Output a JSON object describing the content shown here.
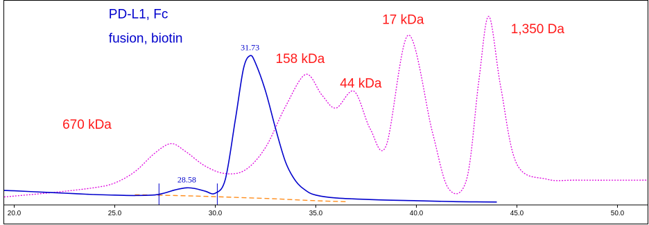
{
  "colors": {
    "background": "#ffffff",
    "frame": "#000000",
    "sample_trace": "#0000cc",
    "standard_trace": "#dd00dd",
    "baseline": "#ff8c1a",
    "standard_labels": "#ff1a1a",
    "sample_labels": "#0000cc"
  },
  "chart_data": {
    "type": "line",
    "title": "",
    "xlabel": "",
    "ylabel": "",
    "xlim": [
      19.5,
      51.5
    ],
    "ylim": [
      0,
      1.08
    ],
    "grid": false,
    "x_ticks": [
      20.0,
      25.0,
      30.0,
      35.0,
      40.0,
      45.0,
      50.0
    ],
    "x_tick_labels": [
      "20.0",
      "25.0",
      "30.0",
      "35.0",
      "40.0",
      "45.0",
      "50.0"
    ],
    "series": [
      {
        "key": "sample",
        "style": "solid",
        "color": "#0000cc",
        "x": [
          19.5,
          20,
          21,
          22,
          23,
          24,
          25,
          26,
          27,
          27.5,
          28,
          28.58,
          29,
          29.5,
          30,
          30.5,
          31,
          31.4,
          31.73,
          32,
          32.5,
          33,
          33.5,
          34,
          34.5,
          35,
          36,
          38,
          40,
          42,
          43,
          44
        ],
        "y": [
          0.07,
          0.068,
          0.063,
          0.058,
          0.053,
          0.048,
          0.045,
          0.043,
          0.046,
          0.057,
          0.073,
          0.084,
          0.08,
          0.066,
          0.055,
          0.13,
          0.45,
          0.72,
          0.79,
          0.75,
          0.6,
          0.4,
          0.22,
          0.12,
          0.07,
          0.045,
          0.03,
          0.02,
          0.015,
          0.01,
          0.009,
          0.008
        ]
      },
      {
        "key": "standards",
        "style": "dotted",
        "color": "#dd00dd",
        "x": [
          19.5,
          20,
          22,
          24,
          25,
          26,
          27,
          27.8,
          28.5,
          29.5,
          30.5,
          31.5,
          32.5,
          33.5,
          34.5,
          35.3,
          36,
          36.9,
          37.7,
          38.5,
          39.6,
          40.8,
          41.6,
          42.5,
          43.1,
          43.6,
          44.2,
          45,
          46.5,
          48,
          51.5
        ],
        "y": [
          0.035,
          0.04,
          0.06,
          0.085,
          0.11,
          0.17,
          0.27,
          0.32,
          0.28,
          0.2,
          0.16,
          0.18,
          0.3,
          0.52,
          0.69,
          0.58,
          0.51,
          0.6,
          0.4,
          0.31,
          0.9,
          0.38,
          0.08,
          0.13,
          0.65,
          1.0,
          0.62,
          0.21,
          0.13,
          0.125,
          0.125
        ]
      },
      {
        "key": "baseline",
        "style": "dashed",
        "color": "#ff8c1a",
        "x": [
          26,
          27,
          29,
          31,
          33,
          35,
          36.5
        ],
        "y": [
          0.047,
          0.045,
          0.04,
          0.033,
          0.025,
          0.015,
          0.01
        ]
      }
    ],
    "peak_markers": [
      27.2,
      30.1
    ],
    "peak_labels": [
      {
        "text": "28.58",
        "x": 28.58,
        "y": 0.084
      },
      {
        "text": "31.73",
        "x": 31.73,
        "y": 0.79
      }
    ],
    "annotations": [
      {
        "text": "PD-L1, Fc",
        "color": "#0000cc",
        "x": 24.7,
        "y": 0.99
      },
      {
        "text": "fusion, biotin",
        "color": "#0000cc",
        "x": 24.7,
        "y": 0.86
      },
      {
        "text": "670 kDa",
        "color": "#ff1a1a",
        "x": 22.4,
        "y": 0.4
      },
      {
        "text": "158 kDa",
        "color": "#ff1a1a",
        "x": 33.0,
        "y": 0.75
      },
      {
        "text": "44 kDa",
        "color": "#ff1a1a",
        "x": 36.2,
        "y": 0.62
      },
      {
        "text": "17 kDa",
        "color": "#ff1a1a",
        "x": 38.3,
        "y": 0.96
      },
      {
        "text": "1,350 Da",
        "color": "#ff1a1a",
        "x": 44.7,
        "y": 0.91
      }
    ]
  }
}
